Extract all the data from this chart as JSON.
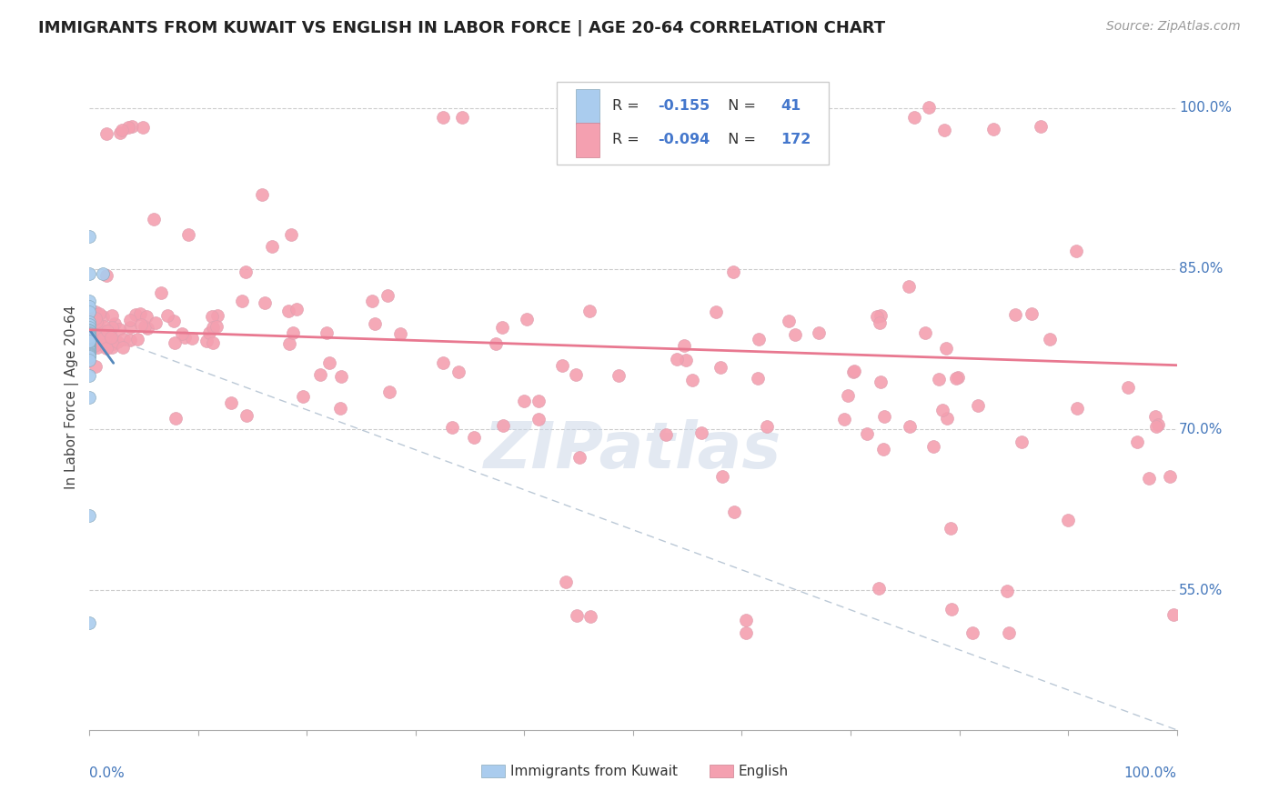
{
  "title": "IMMIGRANTS FROM KUWAIT VS ENGLISH IN LABOR FORCE | AGE 20-64 CORRELATION CHART",
  "source": "Source: ZipAtlas.com",
  "ylabel": "In Labor Force | Age 20-64",
  "ylabel_right_ticks": [
    "100.0%",
    "85.0%",
    "70.0%",
    "55.0%"
  ],
  "ylabel_right_values": [
    1.0,
    0.85,
    0.7,
    0.55
  ],
  "xlim": [
    0.0,
    1.0
  ],
  "ylim": [
    0.42,
    1.04
  ],
  "legend_blue_r": "-0.155",
  "legend_blue_n": "41",
  "legend_pink_r": "-0.094",
  "legend_pink_n": "172",
  "blue_color": "#aaccee",
  "pink_color": "#f4a0b0",
  "blue_line_color": "#5588bb",
  "pink_line_color": "#e87890",
  "dashed_line_color": "#aabbcc",
  "watermark": "ZIPatlas",
  "blue_line_x": [
    0.0,
    0.022
  ],
  "blue_line_y": [
    0.793,
    0.762
  ],
  "pink_line_x": [
    0.0,
    1.0
  ],
  "pink_line_y": [
    0.793,
    0.76
  ],
  "dash_line_x": [
    0.0,
    1.0
  ],
  "dash_line_y": [
    0.793,
    0.42
  ]
}
